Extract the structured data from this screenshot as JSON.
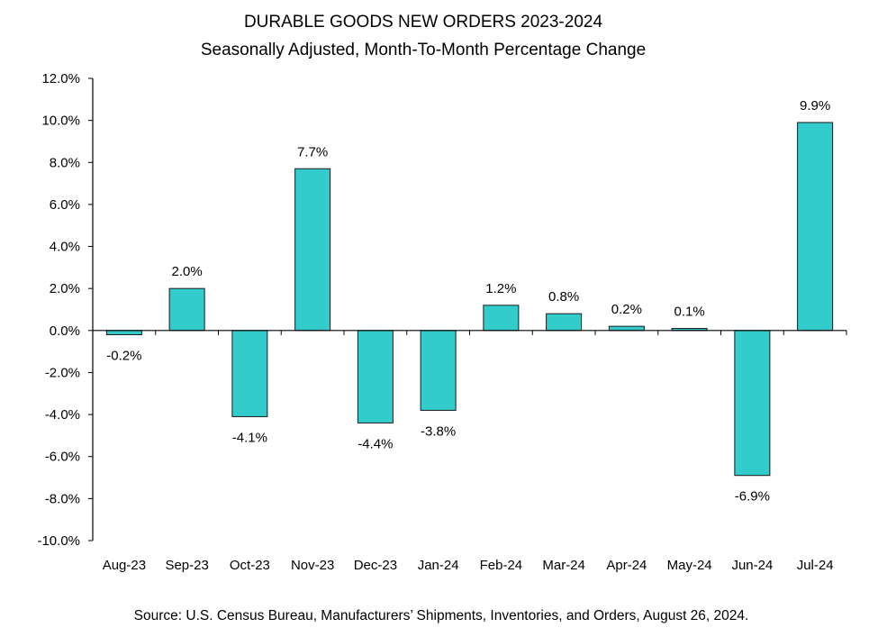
{
  "chart_data": {
    "type": "bar",
    "title": "DURABLE GOODS NEW ORDERS 2023-2024",
    "subtitle": "Seasonally Adjusted,  Month-To-Month Percentage Change",
    "xlabel": "",
    "ylabel": "",
    "categories": [
      "Aug-23",
      "Sep-23",
      "Oct-23",
      "Nov-23",
      "Dec-23",
      "Jan-24",
      "Feb-24",
      "Mar-24",
      "Apr-24",
      "May-24",
      "Jun-24",
      "Jul-24"
    ],
    "values": [
      -0.2,
      2.0,
      -4.1,
      7.7,
      -4.4,
      -3.8,
      1.2,
      0.8,
      0.2,
      0.1,
      -6.9,
      9.9
    ],
    "data_labels": [
      "-0.2%",
      "2.0%",
      "-4.1%",
      "7.7%",
      "-4.4%",
      "-3.8%",
      "1.2%",
      "0.8%",
      "0.2%",
      "0.1%",
      "-6.9%",
      "9.9%"
    ],
    "ylim": [
      -10,
      12
    ],
    "yticks": [
      12,
      10,
      8,
      6,
      4,
      2,
      0,
      -2,
      -4,
      -6,
      -8,
      -10
    ],
    "ytick_labels": [
      "12.0%",
      "10.0%",
      "8.0%",
      "6.0%",
      "4.0%",
      "2.0%",
      "0.0%",
      "-2.0%",
      "-4.0%",
      "-6.0%",
      "-8.0%",
      "-10.0%"
    ],
    "grid": false,
    "legend": "none",
    "bar_color": "#33CCCC",
    "source": "Source: U.S. Census Bureau, Manufacturers’ Shipments, Inventories, and Orders, August 26, 2024."
  }
}
